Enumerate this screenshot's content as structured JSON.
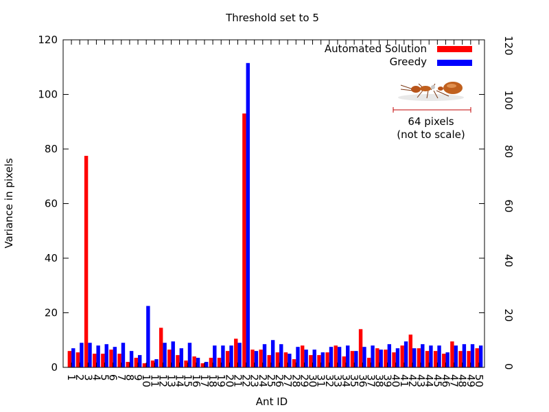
{
  "chart_data": {
    "type": "bar",
    "title": "Threshold set to 5",
    "xlabel": "Ant ID",
    "ylabel": "Variance in pixels",
    "ylim": [
      0,
      120
    ],
    "yticks": [
      0,
      20,
      40,
      60,
      80,
      100,
      120
    ],
    "y2ticks": [
      0,
      20,
      40,
      60,
      80,
      100,
      120
    ],
    "grid": false,
    "legend_position": "top-right",
    "categories": [
      "1",
      "2",
      "3",
      "4",
      "5",
      "6",
      "7",
      "8",
      "9",
      "10",
      "11",
      "12",
      "13",
      "14",
      "15",
      "16",
      "17",
      "18",
      "19",
      "20",
      "21",
      "22",
      "23",
      "24",
      "25",
      "26",
      "27",
      "28",
      "29",
      "30",
      "31",
      "32",
      "33",
      "34",
      "35",
      "36",
      "37",
      "38",
      "39",
      "40",
      "41",
      "42",
      "43",
      "44",
      "45",
      "46",
      "47",
      "48",
      "49",
      "50"
    ],
    "series": [
      {
        "name": "Automated Solution",
        "color": "#ff0000",
        "values": [
          6,
          5.5,
          77.5,
          5,
          5,
          6.5,
          5,
          2,
          3.5,
          1.5,
          2.5,
          14.5,
          6.5,
          4.5,
          2.5,
          4,
          1.5,
          3.5,
          3.5,
          6,
          10.5,
          93,
          6.5,
          6.5,
          4.5,
          5.5,
          5.5,
          3,
          8,
          4.5,
          4.5,
          5.5,
          8,
          4,
          6,
          14,
          3.5,
          7,
          6.5,
          5.5,
          8,
          12,
          7,
          6,
          6,
          5,
          9.5,
          6,
          6,
          7
        ]
      },
      {
        "name": "Greedy",
        "color": "#0000ff",
        "values": [
          7,
          9,
          9,
          8,
          8.5,
          7.5,
          9,
          6,
          4.5,
          22.5,
          3,
          9,
          9.5,
          7,
          9,
          3.5,
          2,
          8,
          8,
          8,
          9,
          111.5,
          6,
          8.5,
          10,
          8.5,
          5,
          7.5,
          6.5,
          6.5,
          5.5,
          7.5,
          7.5,
          8,
          6,
          7.5,
          8,
          6.5,
          8.5,
          7,
          9.5,
          7,
          8.5,
          8,
          8,
          5.5,
          8,
          8.5,
          8.5,
          8
        ]
      }
    ],
    "annotations": {
      "scale_label": "64 pixels",
      "scale_note": "(not to scale)",
      "scale_bar_color": "#c00000",
      "image": "ant-icon"
    }
  }
}
